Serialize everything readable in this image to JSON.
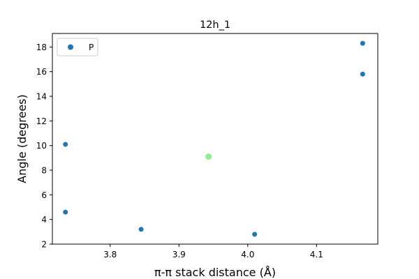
{
  "chart_data": {
    "type": "scatter",
    "title": "12h_1",
    "xlabel": "π-π stack distance (Å)",
    "ylabel": "Angle (degrees)",
    "xlim": [
      3.716,
      4.189
    ],
    "ylim": [
      2.0,
      19.1
    ],
    "xticks": [
      3.8,
      3.9,
      4.0,
      4.1
    ],
    "xtick_labels": [
      "3.8",
      "3.9",
      "4.0",
      "4.1"
    ],
    "yticks": [
      2,
      4,
      6,
      8,
      10,
      12,
      14,
      16,
      18
    ],
    "ytick_labels": [
      "2",
      "4",
      "6",
      "8",
      "10",
      "12",
      "14",
      "16",
      "18"
    ],
    "grid": false,
    "legend_position": "top-left",
    "series": [
      {
        "name": "P",
        "color": "#1f77b4",
        "x": [
          3.735,
          3.735,
          3.845,
          4.01,
          4.167,
          4.167
        ],
        "y": [
          10.1,
          4.6,
          3.2,
          2.8,
          15.8,
          18.3
        ]
      },
      {
        "color": "#90ee90",
        "x": [
          3.943
        ],
        "y": [
          9.1
        ]
      }
    ]
  }
}
